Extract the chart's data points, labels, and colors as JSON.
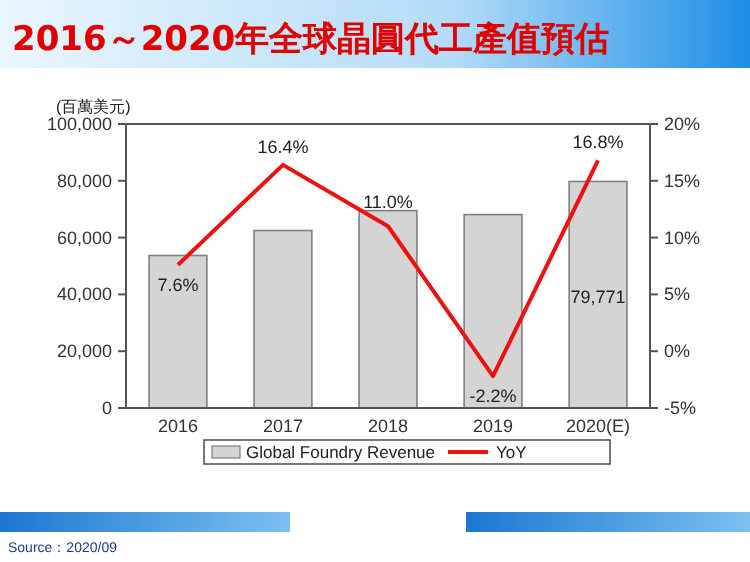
{
  "chart_data": {
    "type": "bar",
    "title": "2016～2020年全球晶圓代工產值預估",
    "ylabel": "(百萬美元)",
    "categories": [
      "2016",
      "2017",
      "2018",
      "2019",
      "2020(E)"
    ],
    "series": [
      {
        "name": "Global Foundry Revenue",
        "color": "#d4d4d4",
        "values": [
          53700,
          62500,
          69500,
          68100,
          79771
        ],
        "value_labels": [
          null,
          null,
          null,
          null,
          "79,771"
        ]
      },
      {
        "name": "YoY",
        "type": "line",
        "axis": "y2",
        "color": "#ee1111",
        "values": [
          7.6,
          16.4,
          11.0,
          -2.2,
          16.8
        ],
        "value_labels": [
          "7.6%",
          "16.4%",
          "11.0%",
          "-2.2%",
          "16.8%"
        ]
      }
    ],
    "ylim": [
      0,
      100000
    ],
    "yticks": [
      0,
      {
        "value": 20000,
        "label": "20,000"
      },
      {
        "value": 40000,
        "label": "40,000"
      },
      {
        "value": 60000,
        "label": "60,000"
      },
      {
        "value": 80000,
        "label": "80,000"
      },
      {
        "value": 100000,
        "label": "100,000"
      }
    ],
    "y2lim": [
      -5,
      20
    ],
    "y2ticks": [
      {
        "value": -5,
        "label": "-5%"
      },
      {
        "value": 0,
        "label": "0%"
      },
      {
        "value": 5,
        "label": "5%"
      },
      {
        "value": 10,
        "label": "10%"
      },
      {
        "value": 15,
        "label": "15%"
      },
      {
        "value": 20,
        "label": "20%"
      }
    ],
    "legend": "bottom",
    "marker": "none",
    "annotations": [
      "Source：2020/09"
    ]
  }
}
